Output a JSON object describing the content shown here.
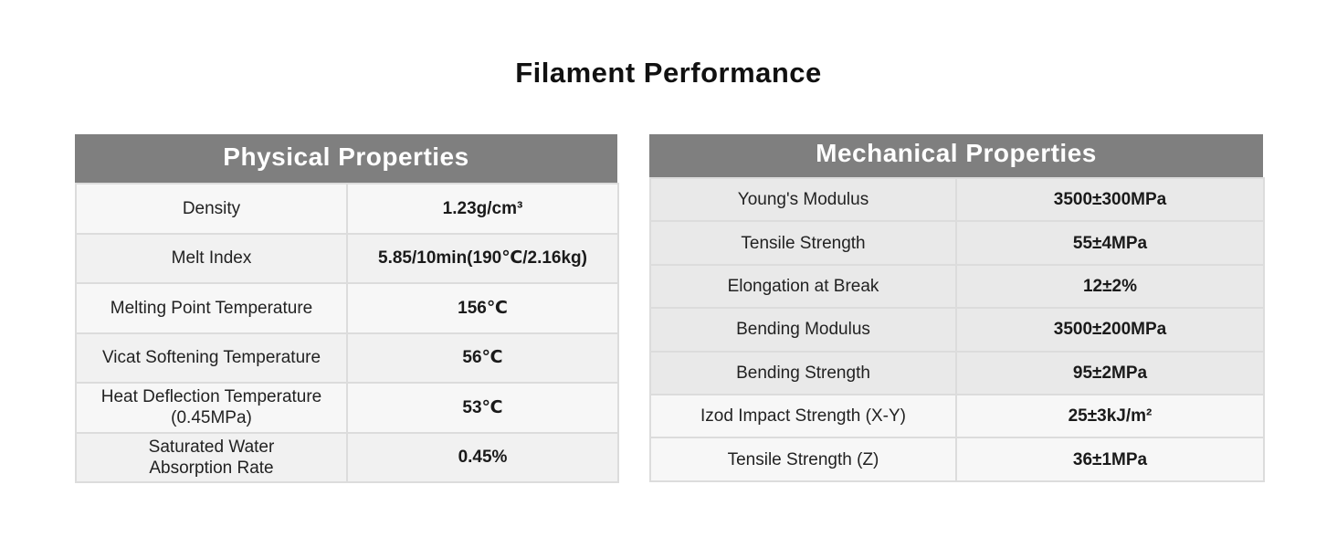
{
  "page": {
    "title": "Filament Performance"
  },
  "physical": {
    "header": "Physical Properties",
    "rows": [
      {
        "label": "Density",
        "value": "1.23g/cm³"
      },
      {
        "label": "Melt Index",
        "value": "5.85/10min(190℃/2.16kg)"
      },
      {
        "label": "Melting Point Temperature",
        "value": "156℃"
      },
      {
        "label": "Vicat Softening Temperature",
        "value": "56℃"
      },
      {
        "label": "Heat Deflection Temperature\n(0.45MPa)",
        "value": "53℃"
      },
      {
        "label": "Saturated Water\nAbsorption Rate",
        "value": "0.45%"
      }
    ]
  },
  "mechanical": {
    "header": "Mechanical Properties",
    "rows": [
      {
        "label": "Young's Modulus",
        "value": "3500±300MPa"
      },
      {
        "label": "Tensile Strength",
        "value": "55±4MPa"
      },
      {
        "label": "Elongation at Break",
        "value": "12±2%"
      },
      {
        "label": "Bending Modulus",
        "value": "3500±200MPa"
      },
      {
        "label": "Bending Strength",
        "value": "95±2MPa"
      },
      {
        "label": "Izod Impact Strength (X-Y)",
        "value": "25±3kJ/m²"
      },
      {
        "label": "Tensile Strength (Z)",
        "value": "36±1MPa"
      }
    ]
  }
}
